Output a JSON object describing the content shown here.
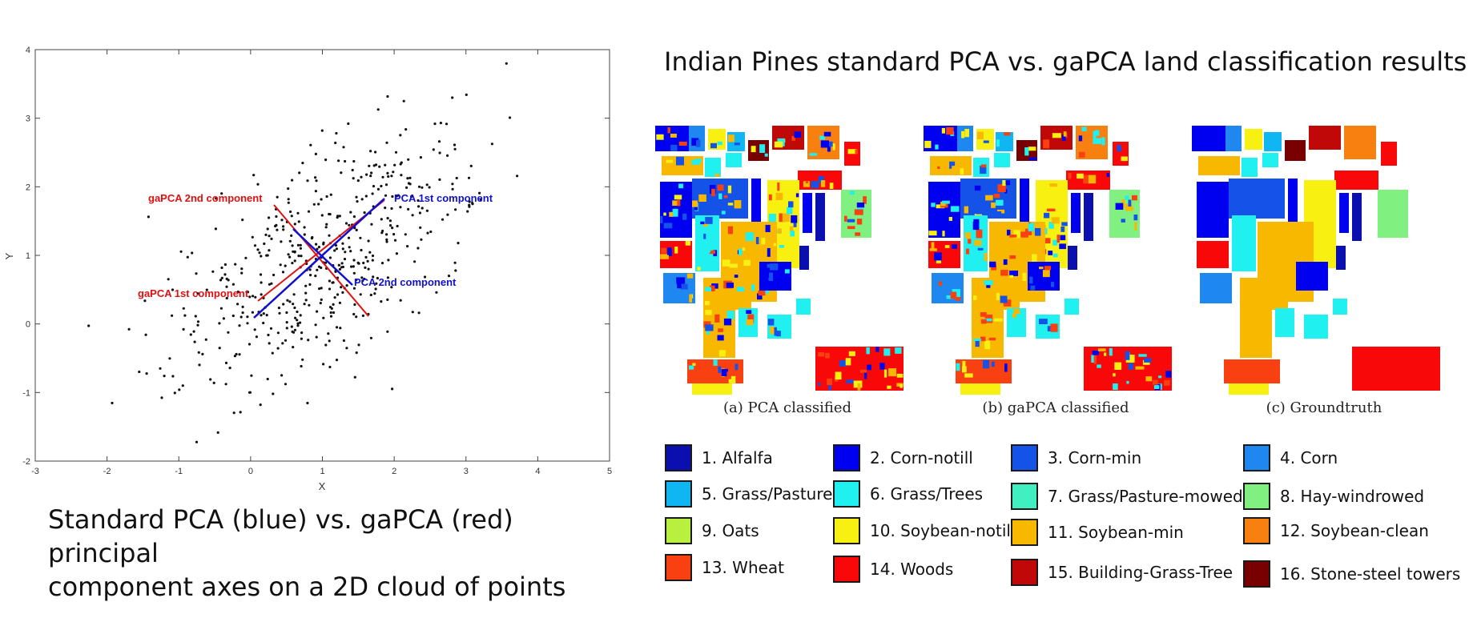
{
  "scatter": {
    "xlabel": "X",
    "ylabel": "Y",
    "xticks": [
      "-3",
      "-2",
      "-1",
      "0",
      "1",
      "2",
      "3",
      "4",
      "5"
    ],
    "yticks": [
      "4",
      "3",
      "2",
      "1",
      "0",
      "-1",
      "-2"
    ],
    "labels": {
      "gapca_2nd": "gaPCA 2nd component",
      "pca_1st": "PCA 1st component",
      "pca_2nd": "PCA 2nd component",
      "gapca_1st": "gaPCA 1st component"
    },
    "colors": {
      "pca": "#1010d0",
      "gapca": "#e01010",
      "points": "#111111"
    }
  },
  "left_caption": {
    "line1": "Standard PCA (blue) vs. gaPCA (red) principal",
    "line2": "component axes on a 2D cloud of points"
  },
  "right_title": "Indian Pines standard PCA vs. gaPCA land classification results",
  "panels": [
    {
      "caption": "(a) PCA classified"
    },
    {
      "caption": "(b) gaPCA classified"
    },
    {
      "caption": "(c) Groundtruth"
    }
  ],
  "legend": [
    {
      "label": "1. Alfalfa",
      "color": "#0b0fb0"
    },
    {
      "label": "2. Corn-notill",
      "color": "#0000f0"
    },
    {
      "label": "3. Corn-min",
      "color": "#1452e8"
    },
    {
      "label": "4. Corn",
      "color": "#1e88f0"
    },
    {
      "label": "5. Grass/Pasture",
      "color": "#10b6f2"
    },
    {
      "label": "6. Grass/Trees",
      "color": "#20f0f0"
    },
    {
      "label": "7. Grass/Pasture-mowed",
      "color": "#40f0c0"
    },
    {
      "label": "8. Hay-windrowed",
      "color": "#80f080"
    },
    {
      "label": "9. Oats",
      "color": "#b8f040"
    },
    {
      "label": "10. Soybean-notill",
      "color": "#f8f010"
    },
    {
      "label": "11. Soybean-min",
      "color": "#f8b800"
    },
    {
      "label": "12. Soybean-clean",
      "color": "#f88010"
    },
    {
      "label": "13. Wheat",
      "color": "#f84010"
    },
    {
      "label": "14. Woods",
      "color": "#f80808"
    },
    {
      "label": "15. Building-Grass-Tree",
      "color": "#c00808"
    },
    {
      "label": "16. Stone-steel towers",
      "color": "#780000"
    }
  ]
}
